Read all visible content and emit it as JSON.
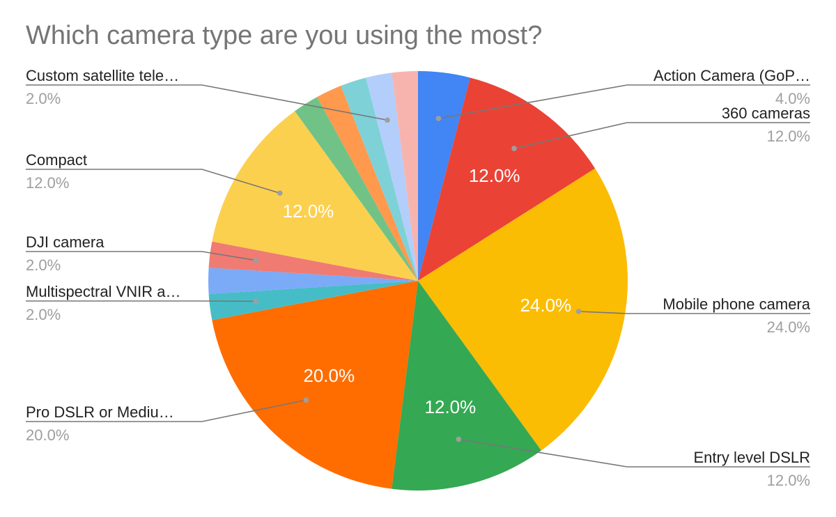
{
  "title": "Which camera type are you using the most?",
  "chart_data": {
    "type": "pie",
    "title": "Which camera type are you using the most?",
    "legend": "labels",
    "slices": [
      {
        "label": "Action Camera (GoP…",
        "value": 4.0,
        "display": "4.0%",
        "color": "#4285F4"
      },
      {
        "label": "360 cameras",
        "value": 12.0,
        "display": "12.0%",
        "color": "#EA4335"
      },
      {
        "label": "Mobile phone camera",
        "value": 24.0,
        "display": "24.0%",
        "color": "#FBBC04"
      },
      {
        "label": "Entry level DSLR",
        "value": 12.0,
        "display": "12.0%",
        "color": "#34A853"
      },
      {
        "label": "Pro DSLR or Mediu…",
        "value": 20.0,
        "display": "20.0%",
        "color": "#FF6D01"
      },
      {
        "label": "Multispectral VNIR a…",
        "value": 2.0,
        "display": "2.0%",
        "color": "#46BDC6"
      },
      {
        "label": "",
        "value": 2.0,
        "display": "",
        "color": "#7BAAF7"
      },
      {
        "label": "DJI camera",
        "value": 2.0,
        "display": "2.0%",
        "color": "#F07B72"
      },
      {
        "label": "Compact",
        "value": 12.0,
        "display": "12.0%",
        "color": "#FCD04F"
      },
      {
        "label": "",
        "value": 2.0,
        "display": "",
        "color": "#71C287"
      },
      {
        "label": "",
        "value": 2.0,
        "display": "",
        "color": "#FF994D"
      },
      {
        "label": "",
        "value": 2.0,
        "display": "",
        "color": "#7ED1D7"
      },
      {
        "label": "Custom satellite tele…",
        "value": 2.0,
        "display": "2.0%",
        "color": "#B3CEFB"
      },
      {
        "label": "",
        "value": 2.0,
        "display": "",
        "color": "#F7B4AE"
      }
    ]
  }
}
